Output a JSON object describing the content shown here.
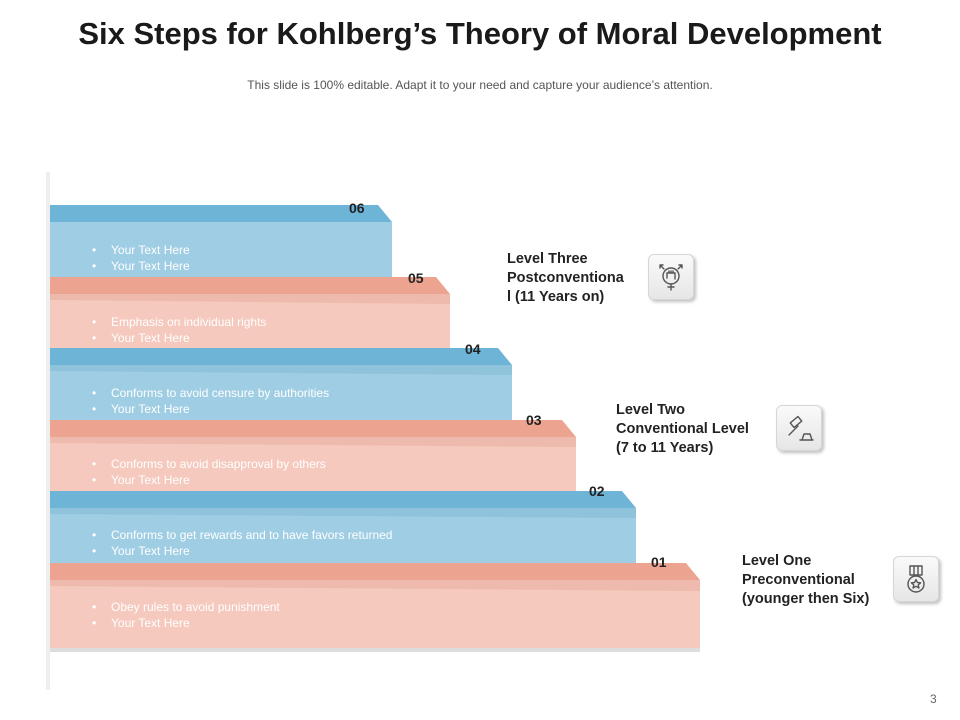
{
  "slide": {
    "title": "Six Steps for Kohlberg’s Theory of Moral Development",
    "subtitle": "This slide is 100% editable. Adapt it to your need and capture your audience’s attention.",
    "page_number": "3"
  },
  "colors": {
    "blue_step": "#9fcde3",
    "blue_top": "#6db4d7",
    "pink_step": "#f5c9bd",
    "pink_top": "#eca491"
  },
  "steps": [
    {
      "number": "06",
      "color": "blue",
      "bullets": [
        "Your Text Here",
        "Your Text Here"
      ]
    },
    {
      "number": "05",
      "color": "pink",
      "bullets": [
        "Emphasis on individual  rights",
        "Your Text Here"
      ]
    },
    {
      "number": "04",
      "color": "blue",
      "bullets": [
        "Conforms  to avoid  censure  by authorities",
        "Your Text Here"
      ]
    },
    {
      "number": "03",
      "color": "pink",
      "bullets": [
        "Conforms  to avoid  disapproval   by others",
        "Your Text Here"
      ]
    },
    {
      "number": "02",
      "color": "blue",
      "bullets": [
        "Conforms  to get rewards  and to have  favors  returned",
        "Your Text Here"
      ]
    },
    {
      "number": "01",
      "color": "pink",
      "bullets": [
        "Obey rules to avoid  punishment",
        "Your Text Here"
      ]
    }
  ],
  "levels": [
    {
      "lines": [
        "Level Three",
        "Postconventiona",
        "l (11 Years on)"
      ],
      "icon": "fist-gender-icon"
    },
    {
      "lines": [
        "Level Two",
        "Conventional Level",
        "(7 to 11 Years)"
      ],
      "icon": "gavel-icon"
    },
    {
      "lines": [
        "Level One",
        "Preconventional",
        "(younger then Six)"
      ],
      "icon": "medal-icon"
    }
  ]
}
